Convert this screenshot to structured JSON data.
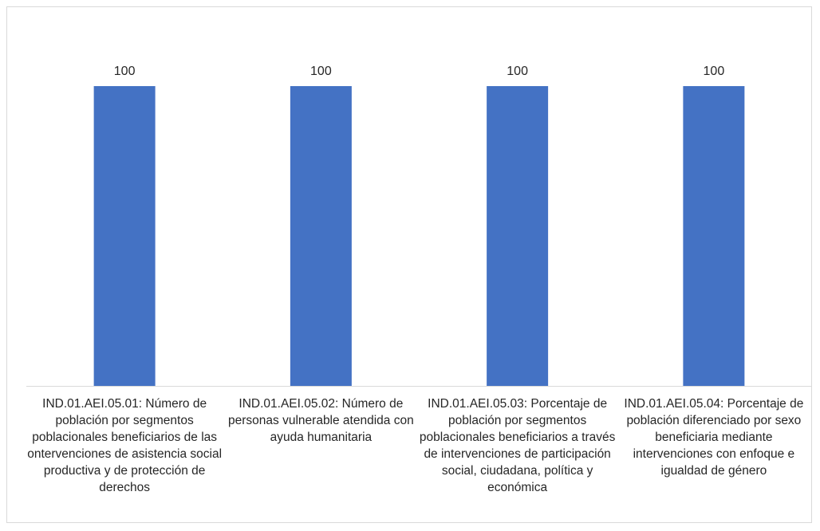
{
  "chart_data": {
    "type": "bar",
    "title": "",
    "xlabel": "",
    "ylabel": "",
    "ylim": [
      0,
      100
    ],
    "grid": false,
    "legend": "none",
    "bar_color": "#4472c4",
    "categories": [
      "IND.01.AEI.05.01: Número de población por segmentos poblacionales beneficiarios de las ontervenciones de asistencia social productiva y de protección de derechos",
      "IND.01.AEI.05.02: Número de personas vulnerable atendida con ayuda humanitaria",
      "IND.01.AEI.05.03: Porcentaje de población por segmentos poblacionales beneficiarios a través de intervenciones de participación social, ciudadana, política y económica",
      "IND.01.AEI.05.04: Porcentaje de población diferenciado por sexo beneficiaria mediante intervenciones con enfoque e igualdad de género"
    ],
    "values": [
      100,
      100,
      100,
      100
    ],
    "data_labels": [
      "100",
      "100",
      "100",
      "100"
    ]
  }
}
